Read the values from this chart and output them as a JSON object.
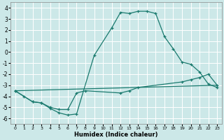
{
  "xlabel": "Humidex (Indice chaleur)",
  "background_color": "#cce8e8",
  "grid_color": "#ffffff",
  "line_color": "#1a7a6e",
  "xlim": [
    -0.5,
    23.5
  ],
  "ylim": [
    -6.5,
    4.5
  ],
  "xticks": [
    0,
    1,
    2,
    3,
    4,
    5,
    6,
    7,
    8,
    9,
    10,
    11,
    12,
    13,
    14,
    15,
    16,
    17,
    18,
    19,
    20,
    21,
    22,
    23
  ],
  "yticks": [
    -6,
    -5,
    -4,
    -3,
    -2,
    -1,
    0,
    1,
    2,
    3,
    4
  ],
  "line1_x": [
    0,
    1,
    2,
    3,
    4,
    5,
    6,
    7,
    9,
    11,
    12,
    13,
    14,
    15,
    16,
    17,
    18,
    19,
    20,
    21,
    22,
    23
  ],
  "line1_y": [
    -3.5,
    -4.0,
    -4.5,
    -4.6,
    -5.1,
    -5.5,
    -5.7,
    -5.6,
    -0.3,
    2.2,
    3.6,
    3.5,
    3.7,
    3.7,
    3.5,
    1.4,
    0.3,
    -0.9,
    -1.1,
    -1.8,
    -2.9,
    -3.2
  ],
  "line2_x": [
    0,
    2,
    3,
    4,
    5,
    6,
    7,
    8,
    12,
    13,
    14,
    19,
    20,
    21,
    22,
    23
  ],
  "line2_y": [
    -3.5,
    -4.5,
    -4.6,
    -5.0,
    -5.2,
    -5.2,
    -3.7,
    -3.5,
    -3.7,
    -3.5,
    -3.2,
    -2.7,
    -2.5,
    -2.3,
    -2.0,
    -3.0
  ],
  "line3_x": [
    0,
    23
  ],
  "line3_y": [
    -3.5,
    -3.0
  ]
}
